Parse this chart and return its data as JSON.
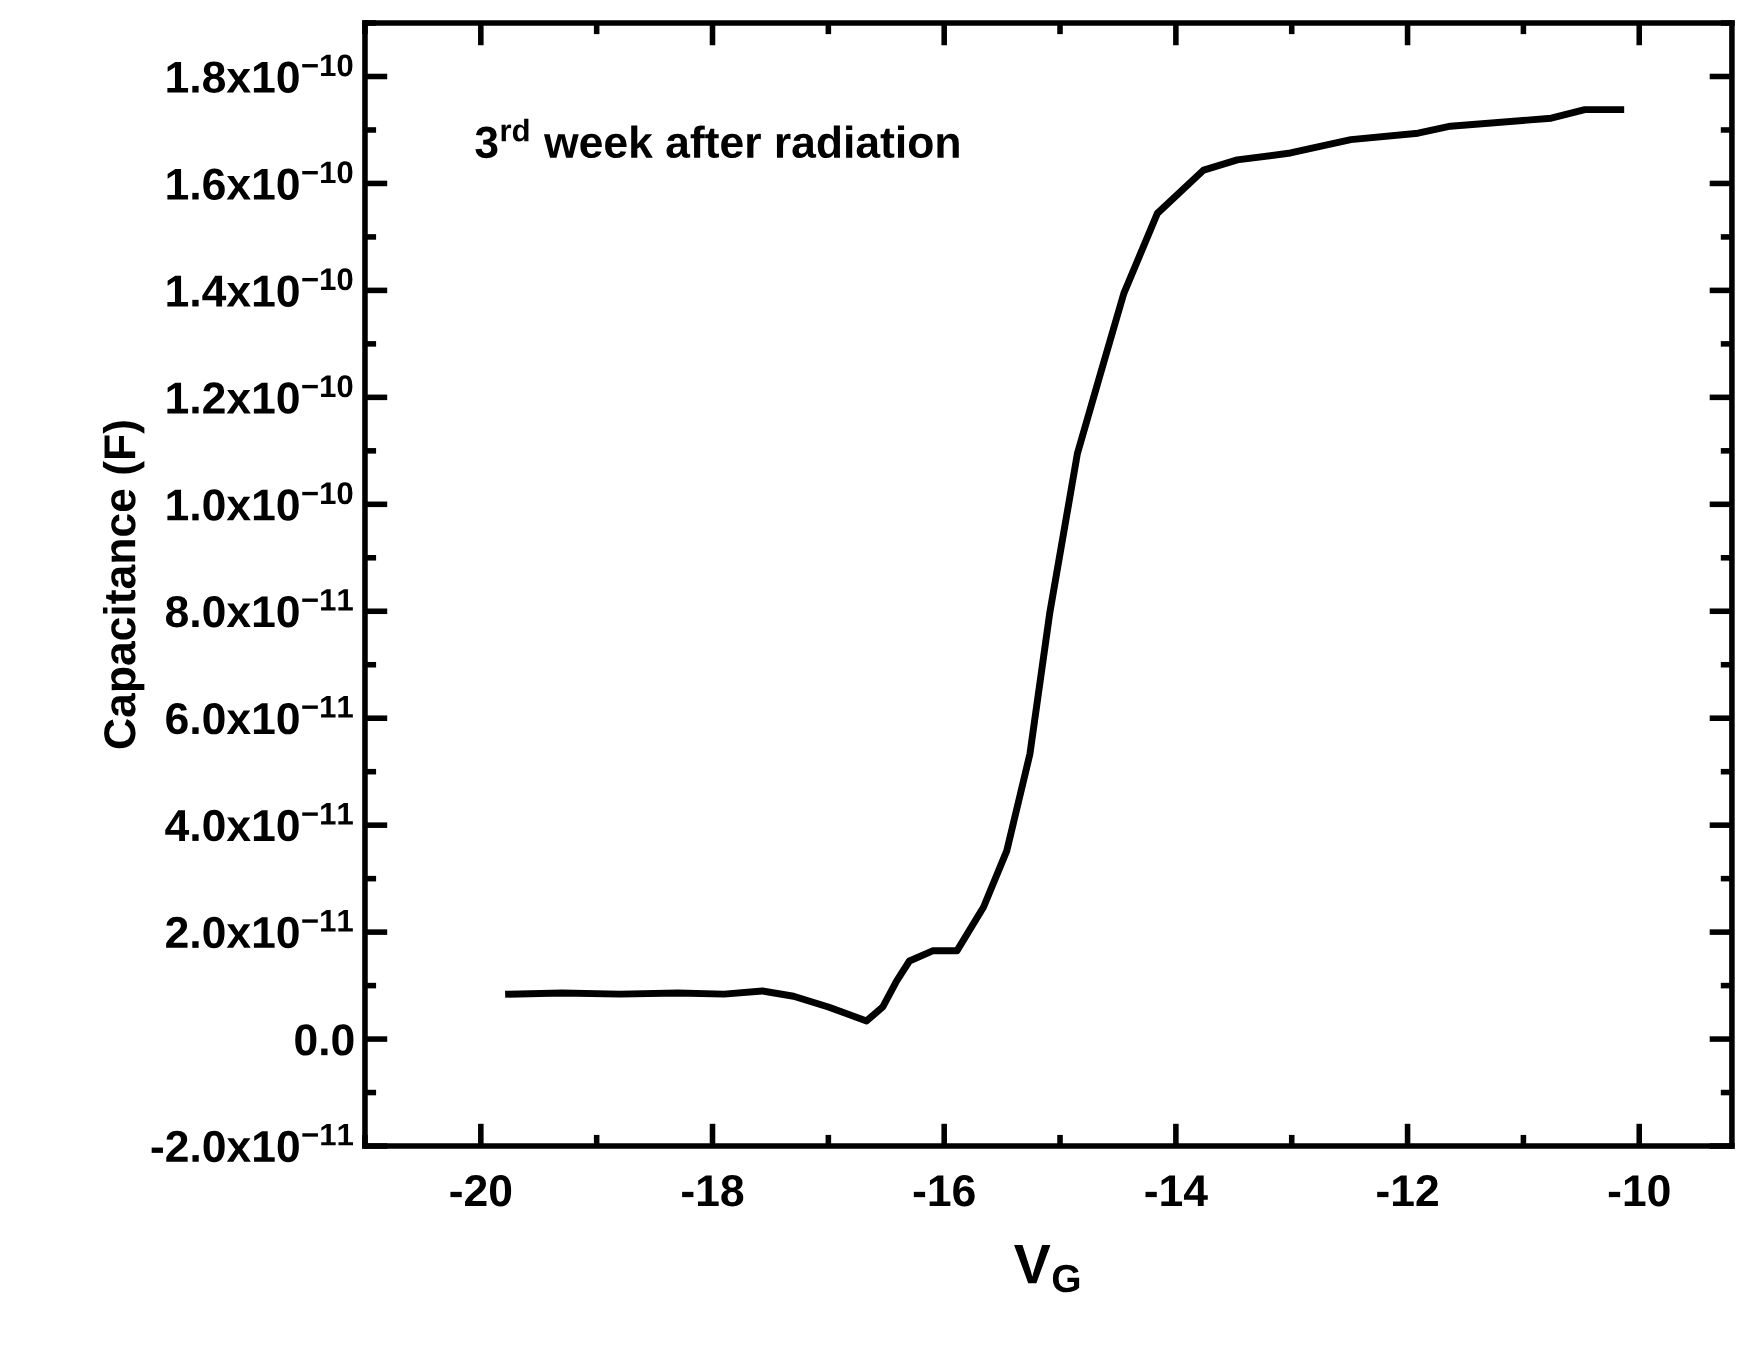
{
  "chart_data": {
    "type": "line",
    "xlabel": "V$_{G}$",
    "ylabel": "Capacitance (F)",
    "annotations": [
      "3$^{rd}$ week after radiation"
    ],
    "series": [
      {
        "color": "#000000",
        "x": [
          -19.76,
          -19.3,
          -18.8,
          -18.3,
          -17.9,
          -17.57,
          -17.3,
          -17.0,
          -16.67,
          -16.53,
          -16.41,
          -16.3,
          -16.1,
          -15.89,
          -15.66,
          -15.46,
          -15.26,
          -15.09,
          -14.85,
          -14.65,
          -14.45,
          -14.16,
          -13.76,
          -13.47,
          -13.01,
          -12.49,
          -11.91,
          -11.63,
          -10.76,
          -10.47,
          -10.16
        ],
        "values": [
          8.4e-12,
          8.6e-12,
          8.4e-12,
          8.6e-12,
          8.4e-12,
          9e-12,
          8e-12,
          6e-12,
          3.4e-12,
          6e-12,
          1.09e-11,
          1.46e-11,
          1.65e-11,
          1.65e-11,
          2.47e-11,
          3.52e-11,
          5.33e-11,
          7.95e-11,
          1.095e-10,
          1.245e-10,
          1.394e-10,
          1.544e-10,
          1.625e-10,
          1.644e-10,
          1.657e-10,
          1.682e-10,
          1.694e-10,
          1.707e-10,
          1.722e-10,
          1.738e-10,
          1.738e-10
        ]
      }
    ],
    "xlim": [
      -21,
      -9.2
    ],
    "xticks": [
      -20,
      -18,
      -16,
      -14,
      -12,
      -10
    ],
    "ylim": [
      -2e-11,
      1.9e-10
    ],
    "yticks": [
      {
        "value": -2e-11,
        "label": "-2.0x10$^{−11}$"
      },
      {
        "value": 0,
        "label": "0.0"
      },
      {
        "value": 2e-11,
        "label": "2.0x10$^{−11}$"
      },
      {
        "value": 4e-11,
        "label": "4.0x10$^{−11}$"
      },
      {
        "value": 6e-11,
        "label": "6.0x10$^{−11}$"
      },
      {
        "value": 8e-11,
        "label": "8.0x10$^{−11}$"
      },
      {
        "value": 1e-10,
        "label": "1.0x10$^{−10}$"
      },
      {
        "value": 1.2e-10,
        "label": "1.2x10$^{−10}$"
      },
      {
        "value": 1.4e-10,
        "label": "1.4x10$^{−10}$"
      },
      {
        "value": 1.6e-10,
        "label": "1.6x10$^{−10}$"
      },
      {
        "value": 1.8e-10,
        "label": "1.8x10$^{−10}$"
      }
    ],
    "grid": false,
    "legend": false,
    "marker": "none",
    "line_style": "solid"
  }
}
